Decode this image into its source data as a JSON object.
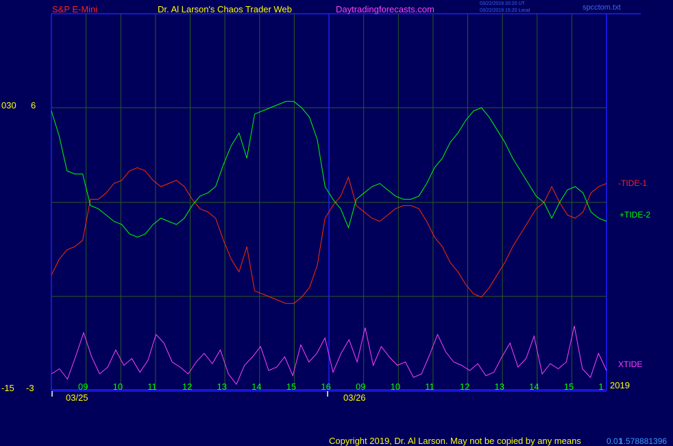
{
  "header": {
    "symbol": "S&P E-Mini",
    "author": "Dr. Al Larson's Chaos Trader Web",
    "site": "Daytradingforecasts.com",
    "timestamp_ut": "03/22/2019 20:20 UT",
    "timestamp_local": "03/22/2019 15:20 Local",
    "filename": "spcctom.txt"
  },
  "footer": {
    "copyright": "Copyright 2019, Dr. Al Larson. May not be copied by any means",
    "code": "0.01",
    "number": "1.578881396"
  },
  "colors": {
    "background": "#00005a",
    "frame": "#1e1eff",
    "grid": "#2a5a1e",
    "tide1": "#ff2a00",
    "tide2": "#00ff00",
    "xtide": "#ff40ff",
    "text_red": "#ff2020",
    "text_yellow": "#ffff00",
    "text_magenta": "#ff40ff"
  },
  "chart_data": {
    "type": "line",
    "title": "S&P E-Mini",
    "left_axis_labels": [
      {
        "outer": "030",
        "inner": "6"
      },
      {
        "outer": "-15",
        "inner": "-3"
      }
    ],
    "x_tick_labels": [
      "09",
      "10",
      "11",
      "12",
      "13",
      "14",
      "15",
      "16",
      "09",
      "10",
      "11",
      "12",
      "13",
      "14",
      "15",
      "1"
    ],
    "date_labels": [
      "03/25",
      "03/26"
    ],
    "year_label": "2019",
    "series": [
      {
        "name": "-TIDE-1",
        "label": "-TIDE-1",
        "color": "#ff2a00",
        "values": [
          -2.3,
          -1.8,
          -1.5,
          -1.4,
          -1.2,
          0.1,
          0.1,
          0.3,
          0.6,
          0.7,
          1.0,
          1.1,
          1.0,
          0.7,
          0.5,
          0.6,
          0.7,
          0.5,
          0.1,
          -0.2,
          -0.3,
          -0.5,
          -1.2,
          -1.8,
          -2.2,
          -1.4,
          -2.8,
          -2.9,
          -3.0,
          -3.1,
          -3.2,
          -3.2,
          -3.0,
          -2.7,
          -2.0,
          -0.5,
          -0.1,
          0.2,
          0.8,
          -0.1,
          -0.3,
          -0.5,
          -0.6,
          -0.4,
          -0.2,
          -0.1,
          -0.1,
          -0.2,
          -0.6,
          -1.1,
          -1.4,
          -1.9,
          -2.2,
          -2.6,
          -2.9,
          -3.0,
          -2.7,
          -2.3,
          -1.9,
          -1.4,
          -1.0,
          -0.6,
          -0.2,
          0.0,
          0.5,
          0.0,
          -0.4,
          -0.5,
          -0.3,
          0.3,
          0.5,
          0.6
        ]
      },
      {
        "name": "+TIDE-2",
        "label": "+TIDE-2",
        "color": "#00ff00",
        "values": [
          2.9,
          2.1,
          1.0,
          0.9,
          0.9,
          -0.1,
          -0.2,
          -0.4,
          -0.6,
          -0.7,
          -1.0,
          -1.1,
          -1.0,
          -0.7,
          -0.5,
          -0.6,
          -0.7,
          -0.5,
          -0.1,
          0.2,
          0.3,
          0.5,
          1.2,
          1.8,
          2.2,
          1.4,
          2.8,
          2.9,
          3.0,
          3.1,
          3.2,
          3.2,
          3.0,
          2.7,
          2.0,
          0.5,
          0.1,
          -0.2,
          -0.8,
          0.1,
          0.3,
          0.5,
          0.6,
          0.4,
          0.2,
          0.1,
          0.1,
          0.2,
          0.6,
          1.1,
          1.4,
          1.9,
          2.2,
          2.6,
          2.9,
          3.0,
          2.7,
          2.3,
          1.9,
          1.4,
          1.0,
          0.6,
          0.2,
          0.0,
          -0.5,
          0.0,
          0.4,
          0.5,
          0.3,
          -0.3,
          -0.5,
          -0.6
        ]
      },
      {
        "name": "XTIDE",
        "label": "XTIDE",
        "color": "#ff40ff",
        "values": [
          -13.6,
          -13.3,
          -13.9,
          -12.6,
          -11.2,
          -12.6,
          -13.6,
          -13.2,
          -12.2,
          -13.1,
          -12.7,
          -13.5,
          -12.8,
          -11.3,
          -11.8,
          -12.9,
          -13.2,
          -13.6,
          -12.9,
          -12.4,
          -13.0,
          -12.2,
          -13.6,
          -14.2,
          -13.1,
          -12.6,
          -12.0,
          -13.4,
          -13.2,
          -12.6,
          -13.7,
          -11.9,
          -12.9,
          -12.4,
          -11.5,
          -13.5,
          -12.4,
          -11.6,
          -12.9,
          -10.9,
          -13.1,
          -12.0,
          -12.6,
          -13.1,
          -12.9,
          -13.8,
          -13.6,
          -12.5,
          -11.3,
          -12.3,
          -12.9,
          -13.1,
          -13.4,
          -13.0,
          -13.7,
          -13.5,
          -12.6,
          -11.8,
          -13.2,
          -12.7,
          -11.4,
          -13.6,
          -13.0,
          -13.3,
          -12.9,
          -10.8,
          -13.3,
          -13.8,
          -12.4,
          -13.4
        ]
      }
    ]
  }
}
